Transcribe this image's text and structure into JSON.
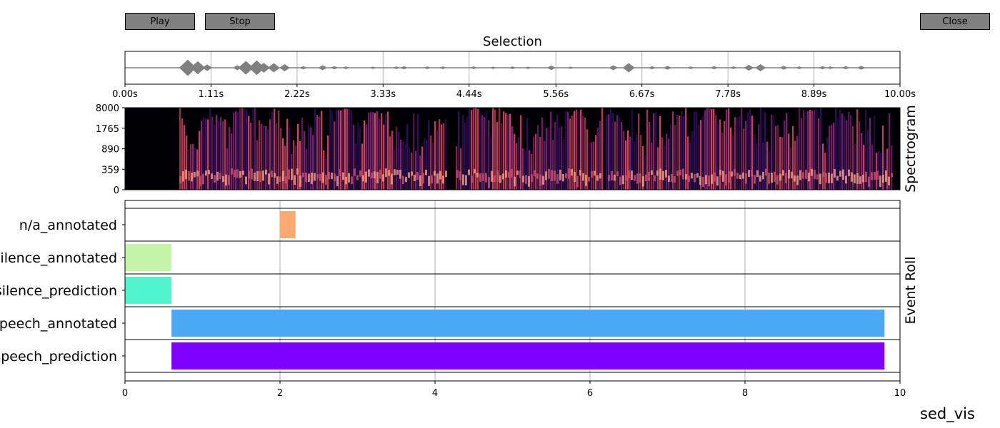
{
  "buttons": {
    "play": "Play",
    "stop": "Stop",
    "close": "Close"
  },
  "figure_label": "sed_vis",
  "colors": {
    "button_bg": "#808080",
    "waveform": "#808080",
    "grid": "#b0b0b0"
  },
  "chart_data": [
    {
      "type": "line",
      "name": "selection-waveform",
      "title": "Selection",
      "xlabel": "",
      "ylabel": "",
      "xlim": [
        0,
        10
      ],
      "xtick_values": [
        0,
        1.11,
        2.22,
        3.33,
        4.44,
        5.56,
        6.67,
        7.78,
        8.89,
        10
      ],
      "xtick_labels": [
        "0.00s",
        "1.11s",
        "2.22s",
        "3.33s",
        "4.44s",
        "5.56s",
        "6.67s",
        "7.78s",
        "8.89s",
        "10.00s"
      ],
      "grid": true,
      "peaks": [
        {
          "t": 0.81,
          "a": 0.5
        },
        {
          "t": 0.94,
          "a": 0.4
        },
        {
          "t": 1.06,
          "a": 0.2
        },
        {
          "t": 1.45,
          "a": 0.15
        },
        {
          "t": 1.56,
          "a": 0.42
        },
        {
          "t": 1.7,
          "a": 0.45
        },
        {
          "t": 1.79,
          "a": 0.3
        },
        {
          "t": 1.92,
          "a": 0.28
        },
        {
          "t": 2.06,
          "a": 0.22
        },
        {
          "t": 2.3,
          "a": 0.1
        },
        {
          "t": 2.55,
          "a": 0.15
        },
        {
          "t": 2.7,
          "a": 0.1
        },
        {
          "t": 2.85,
          "a": 0.08
        },
        {
          "t": 3.2,
          "a": 0.07
        },
        {
          "t": 3.5,
          "a": 0.08
        },
        {
          "t": 3.6,
          "a": 0.1
        },
        {
          "t": 3.9,
          "a": 0.08
        },
        {
          "t": 4.1,
          "a": 0.08
        },
        {
          "t": 4.5,
          "a": 0.08
        },
        {
          "t": 4.75,
          "a": 0.07
        },
        {
          "t": 5.0,
          "a": 0.08
        },
        {
          "t": 5.2,
          "a": 0.07
        },
        {
          "t": 5.5,
          "a": 0.14
        },
        {
          "t": 5.75,
          "a": 0.07
        },
        {
          "t": 6.3,
          "a": 0.15
        },
        {
          "t": 6.5,
          "a": 0.28
        },
        {
          "t": 6.8,
          "a": 0.1
        },
        {
          "t": 7.0,
          "a": 0.12
        },
        {
          "t": 7.3,
          "a": 0.08
        },
        {
          "t": 7.6,
          "a": 0.1
        },
        {
          "t": 7.85,
          "a": 0.08
        },
        {
          "t": 8.05,
          "a": 0.18
        },
        {
          "t": 8.2,
          "a": 0.22
        },
        {
          "t": 8.5,
          "a": 0.12
        },
        {
          "t": 8.7,
          "a": 0.08
        },
        {
          "t": 9.0,
          "a": 0.1
        },
        {
          "t": 9.1,
          "a": 0.08
        },
        {
          "t": 9.3,
          "a": 0.1
        },
        {
          "t": 9.5,
          "a": 0.12
        }
      ]
    },
    {
      "type": "heatmap",
      "name": "spectrogram",
      "title": "",
      "side_label": "Spectrogram",
      "xlim": [
        0,
        10
      ],
      "ytick_labels": [
        "8000",
        "1765",
        "890",
        "359",
        "0"
      ],
      "speech_start": 0.7,
      "speech_end": 9.9,
      "gaps": [
        [
          4.15,
          4.25
        ],
        [
          6.15,
          6.2
        ]
      ],
      "colormap": [
        "#000004",
        "#3b0f70",
        "#8c2981",
        "#de4968",
        "#fe9f6d",
        "#fcfdbf"
      ]
    },
    {
      "type": "bar",
      "name": "event-roll",
      "side_label": "Event Roll",
      "xlim": [
        0,
        10
      ],
      "xtick_values": [
        0,
        2,
        4,
        6,
        8,
        10
      ],
      "xtick_labels": [
        "0",
        "2",
        "4",
        "6",
        "8",
        "10"
      ],
      "grid": true,
      "rows": [
        {
          "label": "n/a_annotated",
          "color": "#ffaa70",
          "events": [
            [
              2.0,
              2.2
            ]
          ]
        },
        {
          "label": "silence_annotated",
          "color": "#c4f4a8",
          "events": [
            [
              0.0,
              0.6
            ]
          ]
        },
        {
          "label": "silence_prediction",
          "color": "#50f5d0",
          "events": [
            [
              0.0,
              0.6
            ]
          ]
        },
        {
          "label": "speech_annotated",
          "color": "#4aa8f5",
          "events": [
            [
              0.6,
              9.8
            ]
          ]
        },
        {
          "label": "speech_prediction",
          "color": "#7f00ff",
          "events": [
            [
              0.6,
              9.8
            ]
          ]
        }
      ]
    }
  ]
}
